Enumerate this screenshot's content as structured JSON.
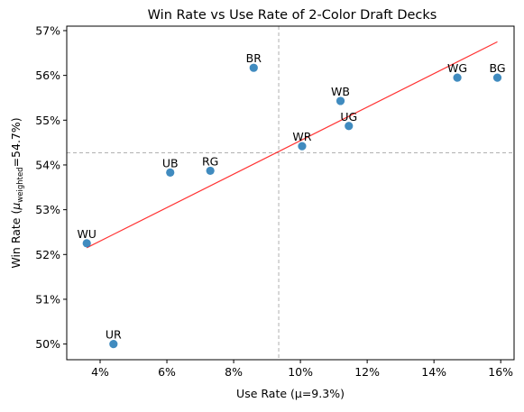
{
  "chart_data": {
    "type": "scatter",
    "title": "Win Rate vs Use Rate of 2-Color Draft Decks",
    "xlabel": "Use Rate (μ=9.3%)",
    "ylabel": {
      "prefix": "Win Rate (",
      "mu": "μ",
      "subscript": "weighted",
      "suffix": "=54.7%)"
    },
    "xlim": [
      3.0,
      16.4
    ],
    "ylim": [
      49.65,
      57.1
    ],
    "xticks": [
      4,
      6,
      8,
      10,
      12,
      14,
      16
    ],
    "yticks": [
      50,
      51,
      52,
      53,
      54,
      55,
      56,
      57
    ],
    "xtick_labels": [
      "4%",
      "6%",
      "8%",
      "10%",
      "12%",
      "14%",
      "16%"
    ],
    "ytick_labels": [
      "50%",
      "51%",
      "52%",
      "53%",
      "54%",
      "55%",
      "56%",
      "57%"
    ],
    "points": [
      {
        "label": "WU",
        "x": 3.6,
        "y": 52.25
      },
      {
        "label": "UR",
        "x": 4.4,
        "y": 50.0
      },
      {
        "label": "UB",
        "x": 6.1,
        "y": 53.83
      },
      {
        "label": "RG",
        "x": 7.3,
        "y": 53.87
      },
      {
        "label": "BR",
        "x": 8.6,
        "y": 56.17
      },
      {
        "label": "WR",
        "x": 10.05,
        "y": 54.42
      },
      {
        "label": "WB",
        "x": 11.2,
        "y": 55.43
      },
      {
        "label": "UG",
        "x": 11.45,
        "y": 54.87
      },
      {
        "label": "WG",
        "x": 14.7,
        "y": 55.95
      },
      {
        "label": "BG",
        "x": 15.9,
        "y": 55.95
      }
    ],
    "trendline": {
      "x": [
        3.6,
        15.9
      ],
      "y": [
        52.15,
        56.75
      ]
    },
    "mean_lines": {
      "x": 9.35,
      "y": 54.27
    },
    "legend": "none",
    "grid": false,
    "colors": {
      "points": "#1f77b4",
      "trendline": "#ff0000",
      "mean_lines": "#b0b0b0",
      "axes": "#000000"
    }
  }
}
